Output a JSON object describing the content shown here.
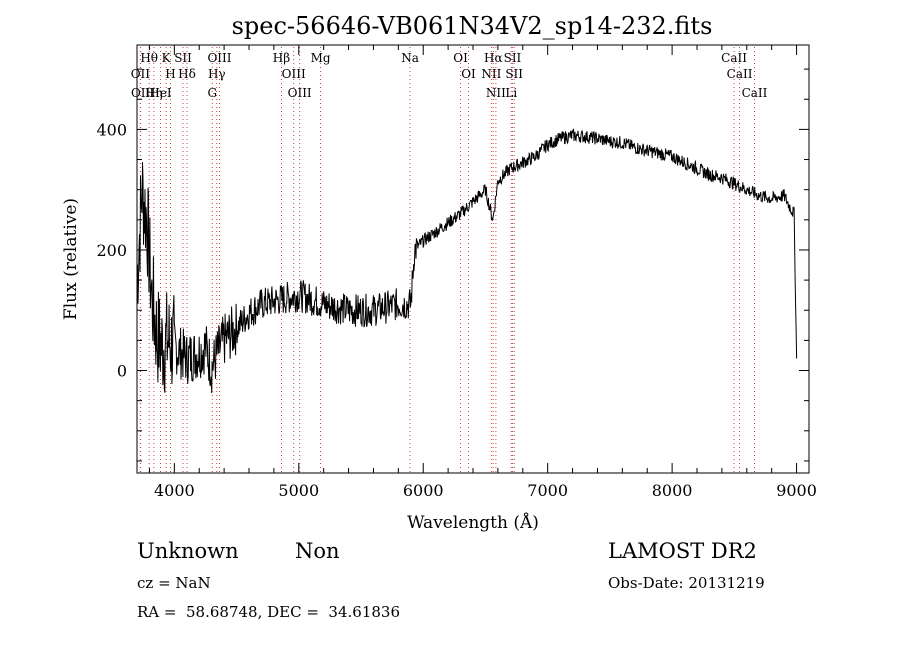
{
  "chart_data": {
    "type": "line",
    "title": "spec-56646-VB061N34V2_sp14-232.fits",
    "xlabel": "Wavelength (Å)",
    "ylabel": "Flux (relative)",
    "xlim": [
      3700,
      9100
    ],
    "ylim": [
      -170,
      540
    ],
    "xticks": [
      4000,
      5000,
      6000,
      7000,
      8000,
      9000
    ],
    "yticks": [
      0,
      200,
      400
    ],
    "grid": false,
    "series": [
      {
        "x": [
          3700,
          3740,
          3780,
          3820,
          3860,
          3900,
          3950,
          4000,
          4050,
          4100,
          4150,
          4200,
          4250,
          4300,
          4350,
          4400,
          4500,
          4600,
          4700,
          4800,
          4900,
          5000,
          5100,
          5200,
          5300,
          5400,
          5500,
          5600,
          5700,
          5800,
          5900,
          5930,
          6000,
          6100,
          6200,
          6300,
          6400,
          6500,
          6560,
          6600,
          6700,
          6800,
          6900,
          7000,
          7100,
          7200,
          7300,
          7400,
          7500,
          7600,
          7700,
          7800,
          7900,
          8000,
          8100,
          8200,
          8300,
          8400,
          8500,
          8600,
          8700,
          8800,
          8900,
          8950,
          8980,
          9000
        ],
        "y": [
          150,
          300,
          250,
          120,
          60,
          40,
          50,
          40,
          30,
          20,
          25,
          30,
          40,
          5,
          30,
          50,
          70,
          95,
          110,
          115,
          120,
          125,
          118,
          110,
          105,
          100,
          100,
          100,
          105,
          110,
          110,
          200,
          215,
          230,
          245,
          260,
          280,
          300,
          250,
          315,
          335,
          345,
          355,
          375,
          385,
          390,
          388,
          385,
          380,
          378,
          370,
          365,
          360,
          355,
          345,
          335,
          325,
          320,
          310,
          300,
          290,
          285,
          290,
          270,
          260,
          20
        ]
      }
    ],
    "line_markers": [
      {
        "label": "Hθ",
        "wavelength": 3798
      },
      {
        "label": "OII",
        "wavelength": 3727
      },
      {
        "label": "OII",
        "wavelength": 3729
      },
      {
        "label": "Hη",
        "wavelength": 3835
      },
      {
        "label": "HeI",
        "wavelength": 3889
      },
      {
        "label": "K",
        "wavelength": 3934
      },
      {
        "label": "H",
        "wavelength": 3969
      },
      {
        "label": "SII",
        "wavelength": 4070
      },
      {
        "label": "Hδ",
        "wavelength": 4102
      },
      {
        "label": "OIII",
        "wavelength": 4363
      },
      {
        "label": "Hγ",
        "wavelength": 4341
      },
      {
        "label": "G",
        "wavelength": 4305
      },
      {
        "label": "Hβ",
        "wavelength": 4861
      },
      {
        "label": "OIII",
        "wavelength": 4959
      },
      {
        "label": "OIII",
        "wavelength": 5007
      },
      {
        "label": "Mg",
        "wavelength": 5175
      },
      {
        "label": "Na",
        "wavelength": 5894
      },
      {
        "label": "OI",
        "wavelength": 6300
      },
      {
        "label": "OI",
        "wavelength": 6364
      },
      {
        "label": "Hα",
        "wavelength": 6563
      },
      {
        "label": "NII",
        "wavelength": 6548
      },
      {
        "label": "NII",
        "wavelength": 6584
      },
      {
        "label": "SII",
        "wavelength": 6717
      },
      {
        "label": "SII",
        "wavelength": 6731
      },
      {
        "label": "Li",
        "wavelength": 6708
      },
      {
        "label": "CaII",
        "wavelength": 8498
      },
      {
        "label": "CaII",
        "wavelength": 8542
      },
      {
        "label": "CaII",
        "wavelength": 8662
      }
    ]
  },
  "info": {
    "class": "Unknown",
    "subclass": "Non",
    "survey": "LAMOST DR2",
    "cz": "cz = NaN",
    "obs_date": "Obs-Date: 20131219",
    "coords": "RA =  58.68748, DEC =  34.61836"
  }
}
